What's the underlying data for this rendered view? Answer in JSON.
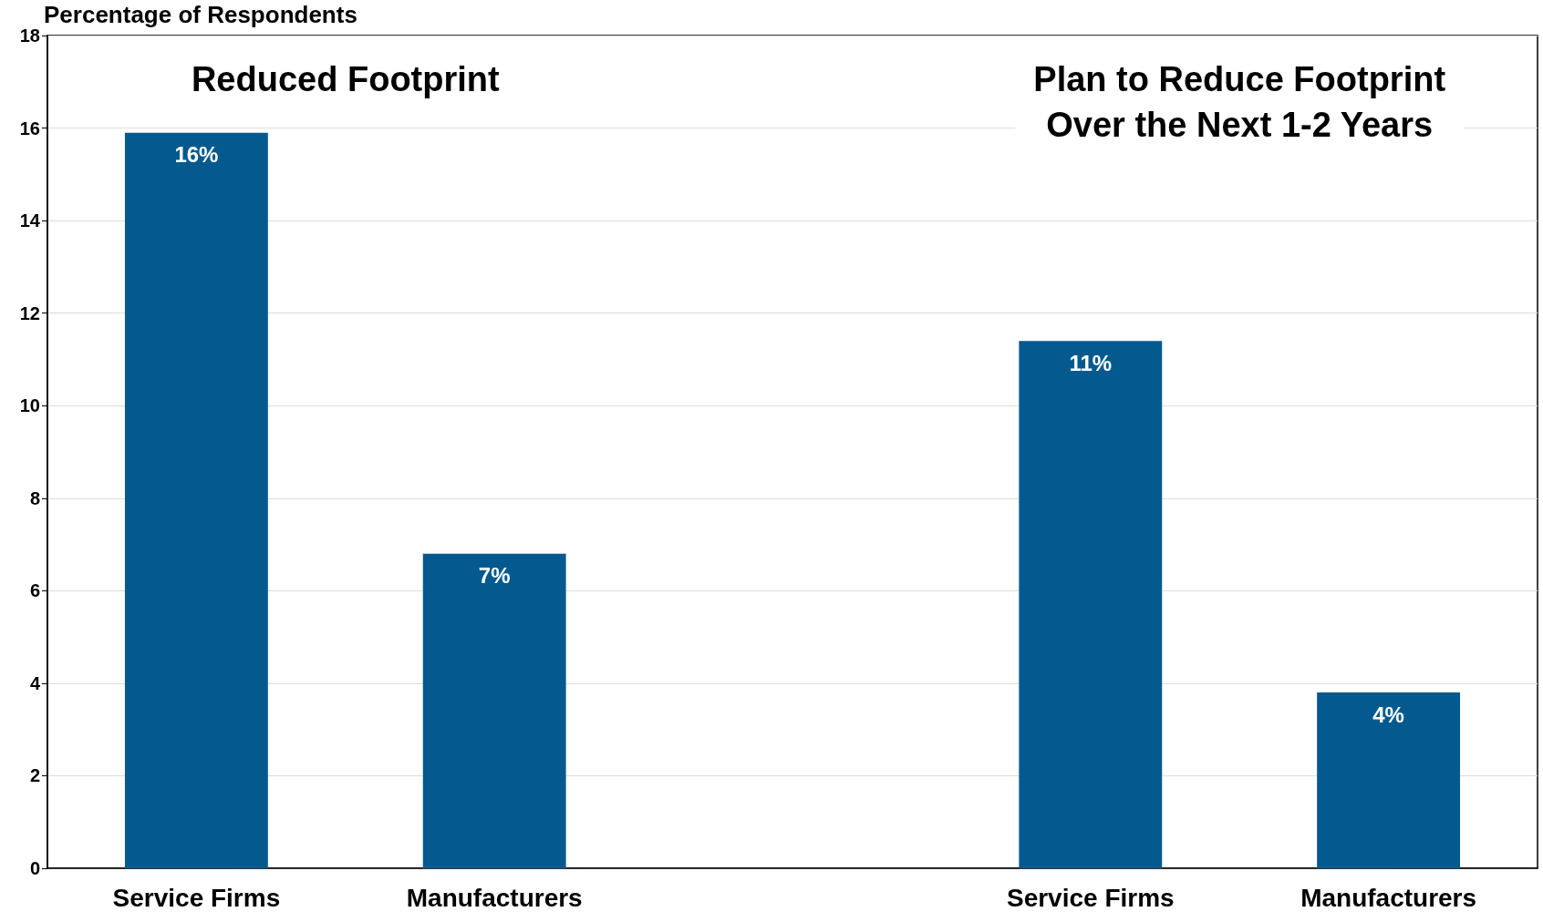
{
  "chart_data": {
    "type": "bar",
    "ylabel": "Percentage of Respondents",
    "categories": [
      "Service Firms",
      "Manufacturers",
      null,
      "Service Firms",
      "Manufacturers"
    ],
    "values": [
      15.9,
      6.8,
      null,
      11.4,
      3.8
    ],
    "value_labels": [
      "16%",
      "7%",
      null,
      "11%",
      "4%"
    ],
    "color": "#045a8f",
    "ylim": [
      0,
      18
    ],
    "yticks": [
      0,
      2,
      4,
      6,
      8,
      10,
      12,
      14,
      16,
      18
    ],
    "grid": "y",
    "annotations": [
      "Reduced Footprint",
      "Plan to Reduce Footprint\nOver the Next 1-2 Years"
    ]
  }
}
